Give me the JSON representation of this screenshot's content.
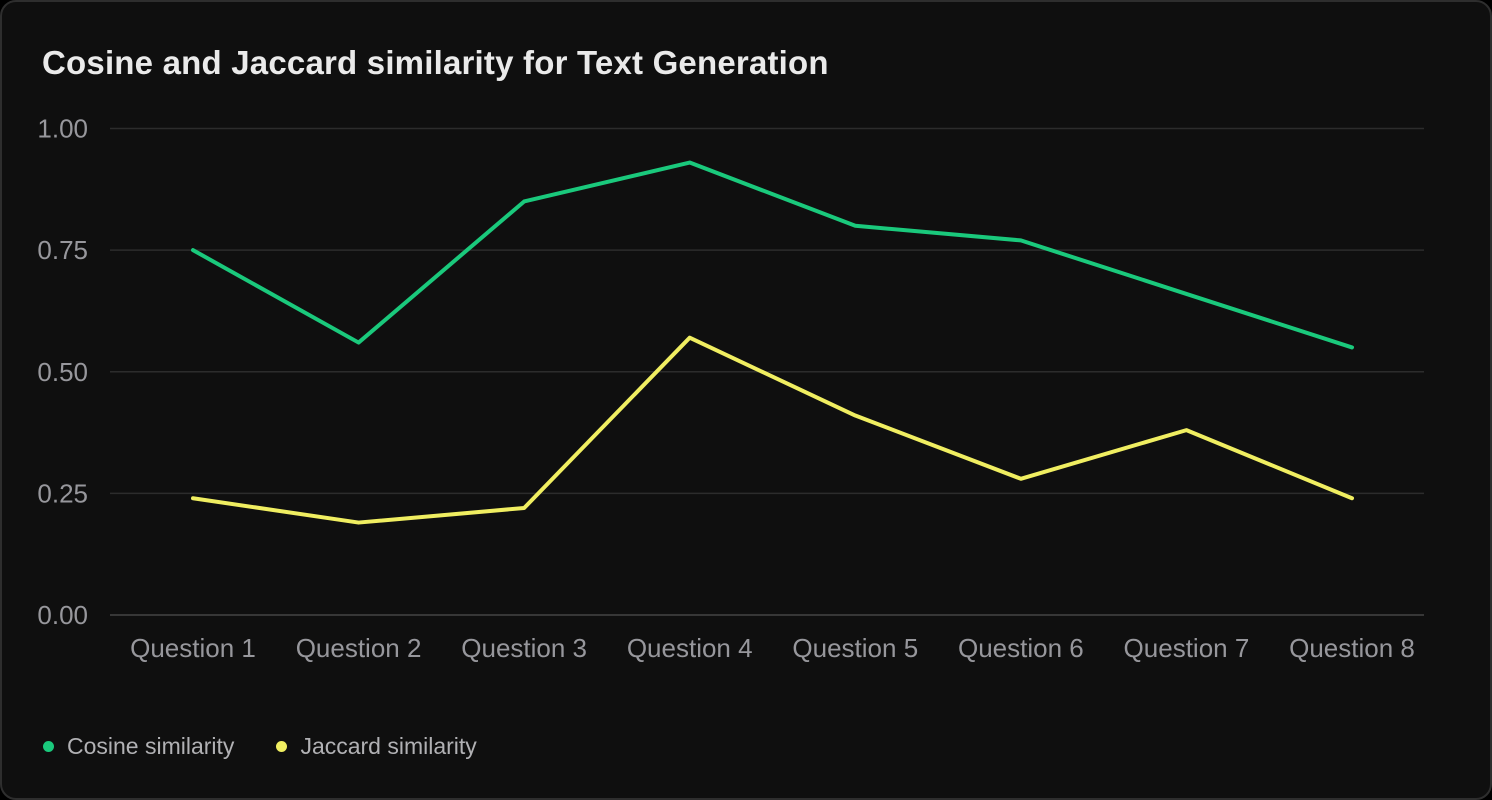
{
  "panel": {
    "title": "Cosine and Jaccard similarity for Text Generation"
  },
  "colors": {
    "panel_background": "#0f0f0f",
    "panel_border": "#2e2e2e",
    "grid_line": "#2c2c2c",
    "axis_line": "#454545",
    "title_text": "#eaeaea",
    "tick_text": "#97979c",
    "legend_text": "#b1b1b4",
    "cosine": "#1ac97c",
    "jaccard": "#f0ee61"
  },
  "chart_data": {
    "type": "line",
    "title": "Cosine and Jaccard similarity for Text Generation",
    "xlabel": "",
    "ylabel": "",
    "categories": [
      "Question 1",
      "Question 2",
      "Question 3",
      "Question 4",
      "Question 5",
      "Question 6",
      "Question 7",
      "Question 8"
    ],
    "series": [
      {
        "name": "Cosine similarity",
        "color_key": "cosine",
        "color": "#1ac97c",
        "values": [
          0.75,
          0.56,
          0.85,
          0.93,
          0.8,
          0.77,
          0.66,
          0.55
        ]
      },
      {
        "name": "Jaccard similarity",
        "color_key": "jaccard",
        "color": "#f0ee61",
        "values": [
          0.24,
          0.19,
          0.22,
          0.57,
          0.41,
          0.28,
          0.38,
          0.24
        ]
      }
    ],
    "ylim": [
      0,
      1
    ],
    "y_tick_labels": [
      "1.00",
      "0.75",
      "0.50",
      "0.25",
      "0.00"
    ],
    "y_tick_values": [
      1.0,
      0.75,
      0.5,
      0.25,
      0.0
    ],
    "grid": true,
    "legend_position": "bottom-left"
  }
}
